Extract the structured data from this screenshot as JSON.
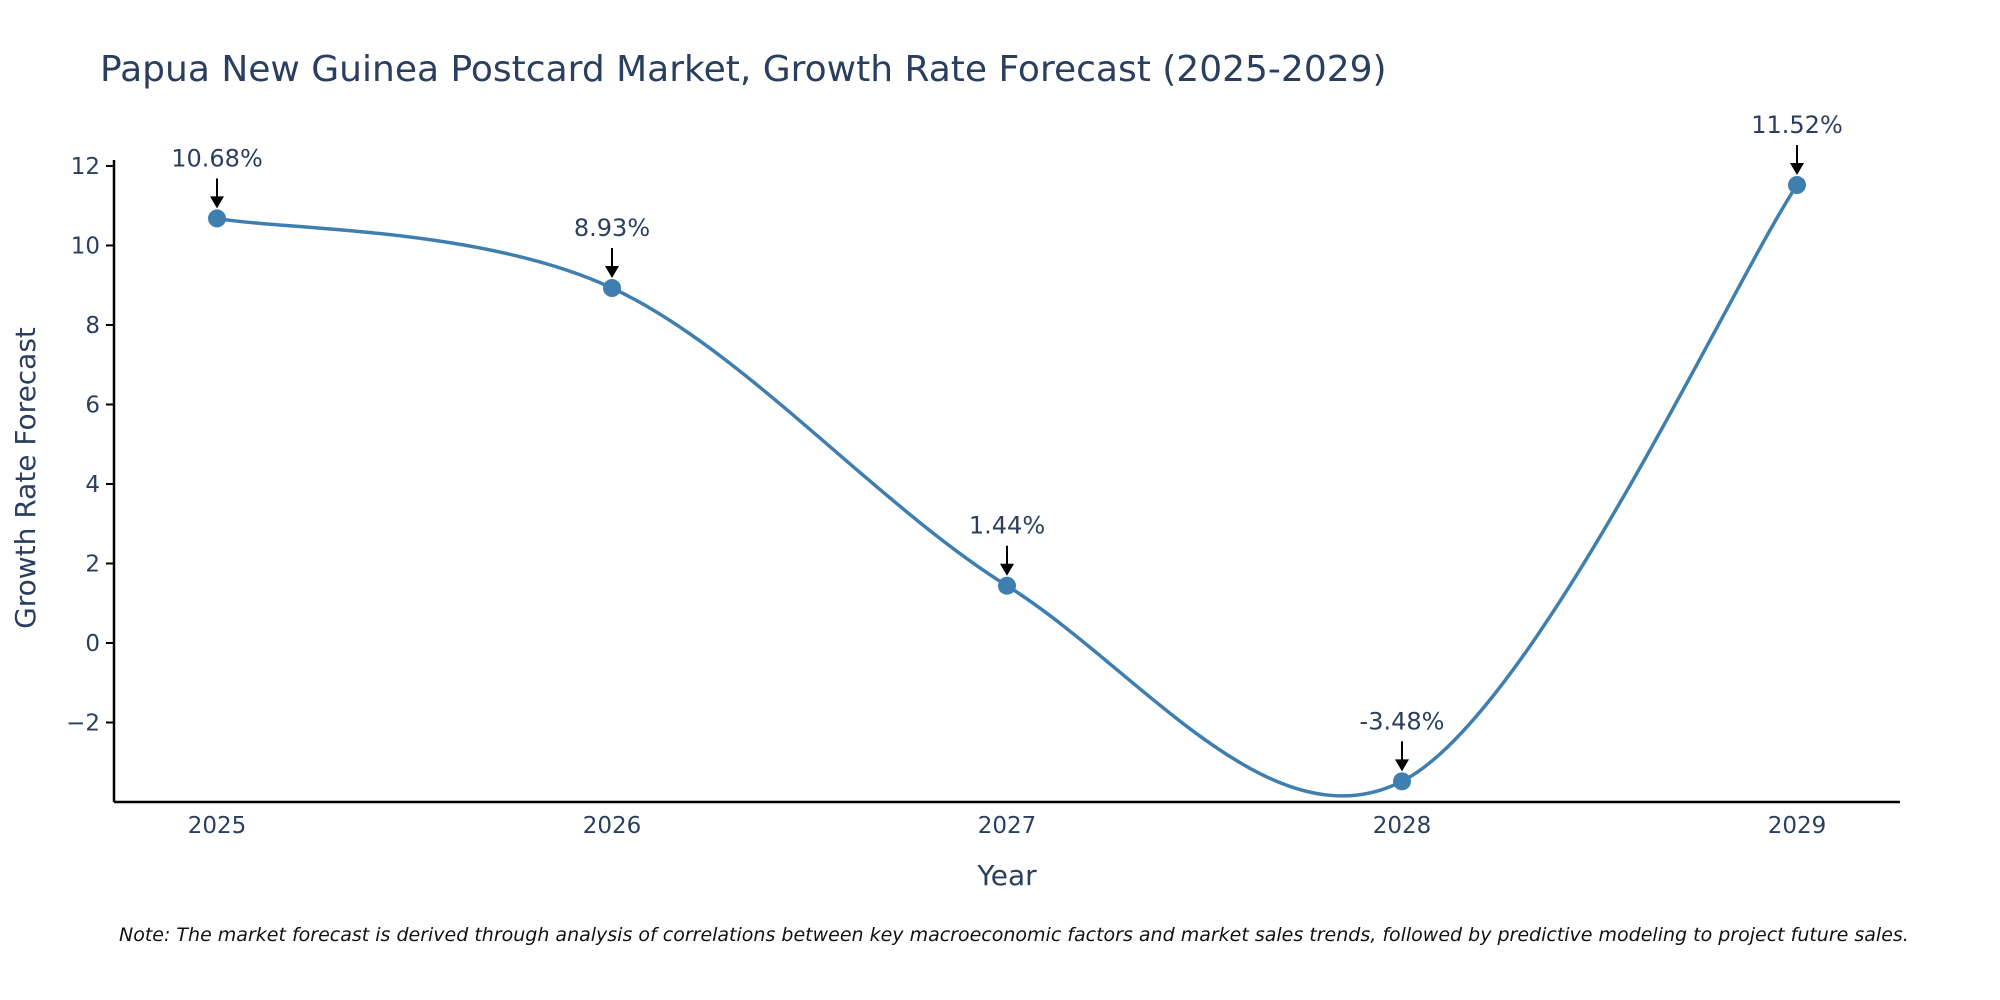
{
  "chart_data": {
    "type": "line",
    "title": "Papua New Guinea Postcard Market, Growth Rate Forecast (2025-2029)",
    "xlabel": "Year",
    "ylabel": "Growth Rate Forecast",
    "categories": [
      "2025",
      "2026",
      "2027",
      "2028",
      "2029"
    ],
    "series": [
      {
        "name": "Growth Rate Forecast",
        "values": [
          10.68,
          8.93,
          1.44,
          -3.48,
          11.52
        ]
      }
    ],
    "data_labels": [
      "10.68%",
      "8.93%",
      "1.44%",
      "-3.48%",
      "11.52%"
    ],
    "yticks": [
      -2,
      0,
      2,
      4,
      6,
      8,
      10,
      12
    ],
    "ytick_labels": [
      "−2",
      "0",
      "2",
      "4",
      "6",
      "8",
      "10",
      "12"
    ],
    "ylim": [
      -4.0,
      12.15
    ],
    "grid": false,
    "line_color": "#3f7faf",
    "marker_color": "#3f7faf",
    "note": "Note: The market forecast is derived through analysis of correlations between key macroeconomic factors and market sales trends, followed by predictive modeling to project future sales."
  }
}
